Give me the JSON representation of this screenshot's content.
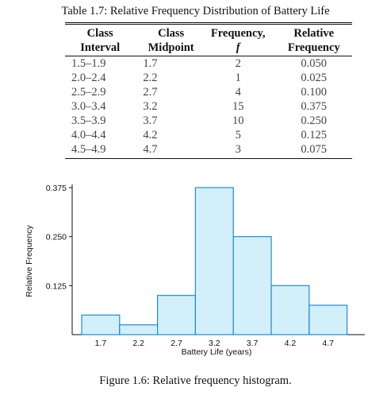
{
  "table": {
    "caption": "Table 1.7: Relative Frequency Distribution of Battery Life",
    "headers": {
      "row1": [
        "Class",
        "Class",
        "Frequency,",
        "Relative"
      ],
      "row2": [
        "Interval",
        "Midpoint",
        "f",
        "Frequency"
      ]
    },
    "rows": [
      [
        "1.5–1.9",
        "1.7",
        "2",
        "0.050"
      ],
      [
        "2.0–2.4",
        "2.2",
        "1",
        "0.025"
      ],
      [
        "2.5–2.9",
        "2.7",
        "4",
        "0.100"
      ],
      [
        "3.0–3.4",
        "3.2",
        "15",
        "0.375"
      ],
      [
        "3.5–3.9",
        "3.7",
        "10",
        "0.250"
      ],
      [
        "4.0–4.4",
        "4.2",
        "5",
        "0.125"
      ],
      [
        "4.5–4.9",
        "4.7",
        "3",
        "0.075"
      ]
    ]
  },
  "chart_data": {
    "type": "bar",
    "categories": [
      "1.7",
      "2.2",
      "2.7",
      "3.2",
      "3.7",
      "4.2",
      "4.7"
    ],
    "values": [
      0.05,
      0.025,
      0.1,
      0.375,
      0.25,
      0.125,
      0.075
    ],
    "xlabel": "Battery Life (years)",
    "ylabel": "Relative Frequency",
    "yticks": [
      "0.125",
      "0.250",
      "0.375"
    ],
    "ytick_values": [
      0.125,
      0.25,
      0.375
    ],
    "ylim": [
      0,
      0.375
    ],
    "grid": false,
    "bar_fill": "#d3effa",
    "bar_stroke": "#1a8fd0"
  },
  "figure": {
    "caption": "Figure 1.6: Relative frequency histogram."
  }
}
